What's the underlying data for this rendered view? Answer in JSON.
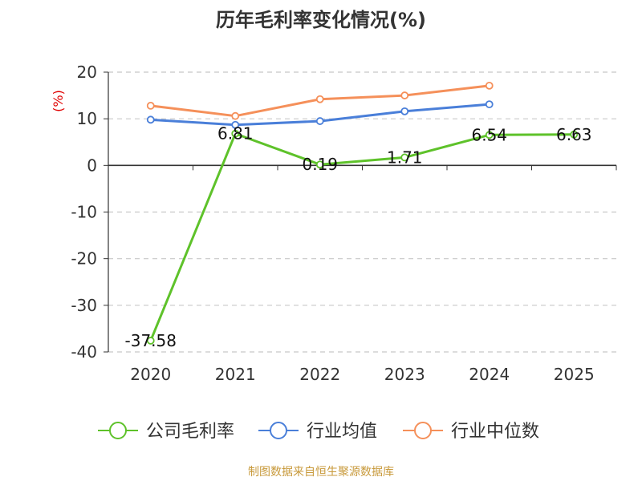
{
  "chart_data": {
    "type": "line",
    "title": "历年毛利率变化情况(%)",
    "ylabel": "(%)",
    "xlabel": "",
    "categories": [
      "2020",
      "2021",
      "2022",
      "2023",
      "2024",
      "2025"
    ],
    "ylim": [
      -40,
      20
    ],
    "yticks": [
      20,
      10,
      0,
      -10,
      -20,
      -30,
      -40
    ],
    "grid": true,
    "legend_position": "bottom",
    "series": [
      {
        "name": "公司毛利率",
        "color": "#5ec22a",
        "values": [
          -37.58,
          6.81,
          0.19,
          1.71,
          6.54,
          6.63
        ],
        "labels": [
          "-37.58",
          "6.81",
          "0.19",
          "1.71",
          "6.54",
          "6.63"
        ]
      },
      {
        "name": "行业均值",
        "color": "#4a7fd9",
        "values": [
          9.8,
          8.7,
          9.5,
          11.6,
          13.1,
          null
        ]
      },
      {
        "name": "行业中位数",
        "color": "#f5905a",
        "values": [
          12.8,
          10.6,
          14.2,
          15.0,
          17.1,
          null
        ]
      }
    ]
  },
  "source": "制图数据来自恒生聚源数据库"
}
